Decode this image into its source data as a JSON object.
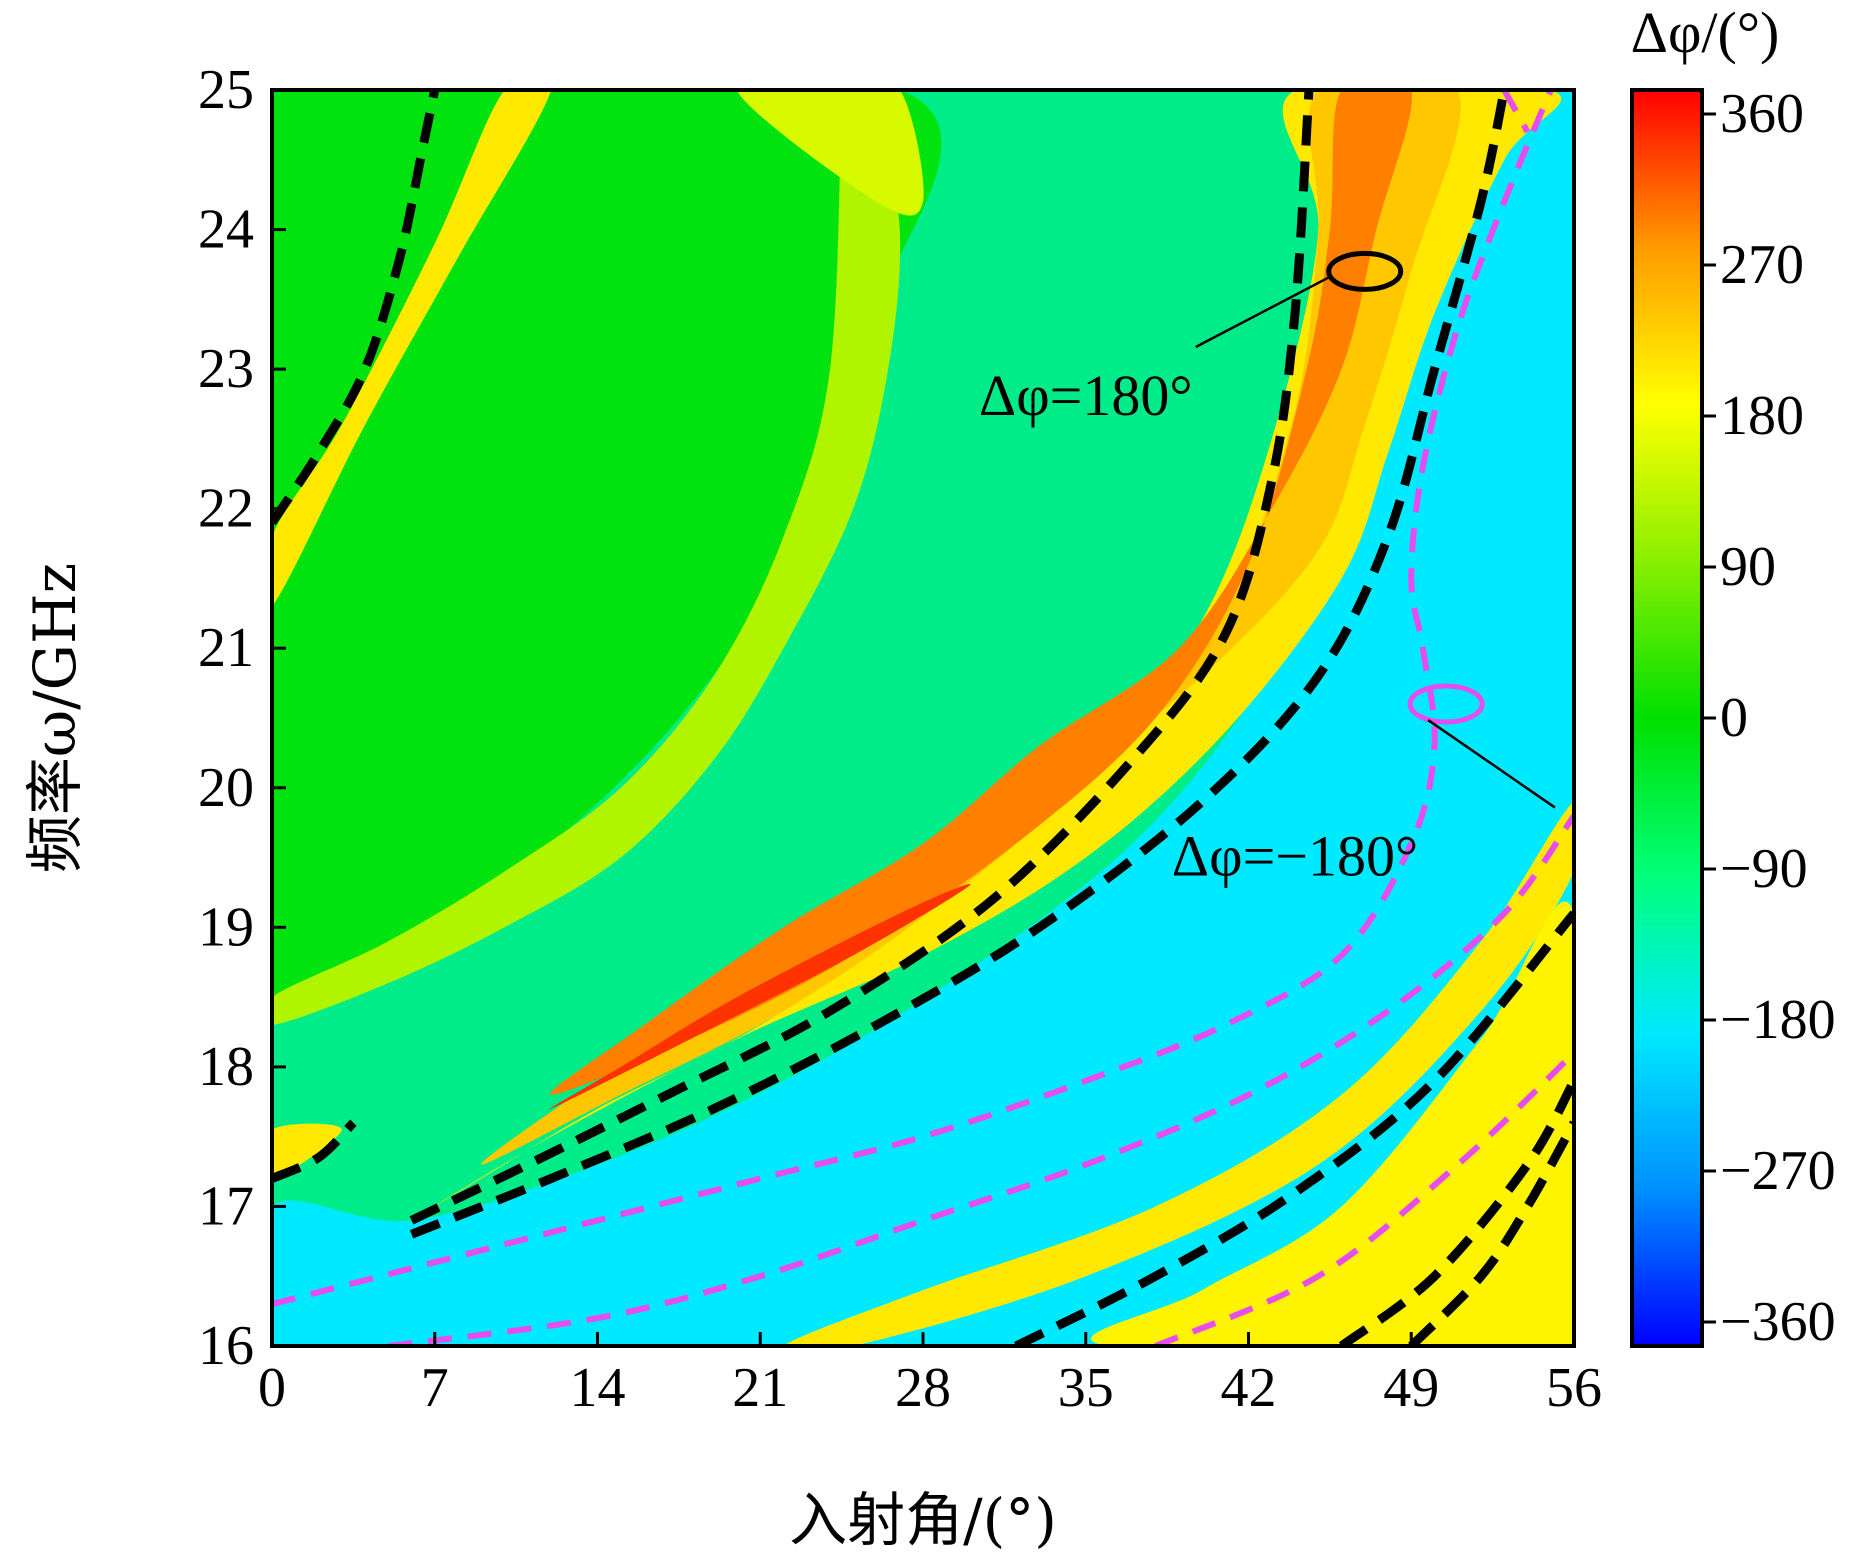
{
  "chart_data": {
    "type": "heatmap",
    "title": "",
    "xlabel": "入射角/(°)",
    "ylabel": "频率ω/GHz",
    "xlim": [
      0,
      56
    ],
    "ylim": [
      16,
      25
    ],
    "x_ticks": [
      "0",
      "7",
      "14",
      "21",
      "28",
      "35",
      "42",
      "49",
      "56"
    ],
    "y_ticks": [
      "16",
      "17",
      "18",
      "19",
      "20",
      "21",
      "22",
      "23",
      "24",
      "25"
    ],
    "colorbar": {
      "label": "Δφ/(°)",
      "range": [
        -360,
        360
      ],
      "ticks": [
        "360",
        "270",
        "180",
        "90",
        "0",
        "−90",
        "−180",
        "−270",
        "−360"
      ],
      "colors": [
        "#0000ff",
        "#0090ff",
        "#00eaff",
        "#00ff7a",
        "#00e000",
        "#8aef00",
        "#ffff00",
        "#ff9a00",
        "#ff0000"
      ]
    },
    "regions": [
      {
        "dphi": 200,
        "boundary": [
          [
            0,
            17.2
          ],
          [
            3,
            17.55
          ],
          [
            0,
            17.55
          ]
        ]
      },
      {
        "dphi": 200,
        "boundary": [
          [
            0,
            21.8
          ],
          [
            3,
            22.6
          ],
          [
            7,
            23.9
          ],
          [
            10,
            25
          ],
          [
            12,
            25
          ],
          [
            8,
            23.8
          ],
          [
            4,
            22.6
          ],
          [
            0,
            21.3
          ]
        ]
      },
      {
        "dphi": 150,
        "boundary": [
          [
            20,
            25
          ],
          [
            24.5,
            25
          ],
          [
            27,
            25
          ],
          [
            28,
            24.2
          ],
          [
            26,
            24.2
          ]
        ]
      },
      {
        "dphi": 200,
        "boundary": [
          [
            44,
            25
          ],
          [
            55,
            25
          ],
          [
            53,
            24.5
          ],
          [
            50,
            23.4
          ],
          [
            48,
            22.4
          ],
          [
            46,
            21.5
          ],
          [
            41,
            20.4
          ],
          [
            35,
            19.5
          ],
          [
            28,
            18.8
          ],
          [
            20,
            18.2
          ],
          [
            12,
            17.5
          ],
          [
            6,
            16.9
          ],
          [
            9,
            17.2
          ],
          [
            14,
            17.7
          ],
          [
            21,
            18.3
          ],
          [
            28,
            19.1
          ],
          [
            35,
            20.1
          ],
          [
            40,
            21.2
          ],
          [
            43,
            22.5
          ],
          [
            45,
            24.0
          ]
        ]
      },
      {
        "dphi": 230,
        "boundary": [
          [
            45,
            25
          ],
          [
            51,
            25
          ],
          [
            49,
            23.7
          ],
          [
            47,
            22.6
          ],
          [
            45,
            21.7
          ],
          [
            40,
            20.8
          ],
          [
            34,
            20.0
          ],
          [
            28,
            19.3
          ],
          [
            21,
            18.6
          ],
          [
            14,
            17.9
          ],
          [
            9,
            17.3
          ],
          [
            15,
            17.8
          ],
          [
            22,
            18.4
          ],
          [
            29,
            19.2
          ],
          [
            36,
            20.2
          ],
          [
            41,
            21.3
          ],
          [
            44,
            22.7
          ],
          [
            45,
            24
          ]
        ]
      },
      {
        "dphi": 285,
        "boundary": [
          [
            46,
            25
          ],
          [
            49,
            25
          ],
          [
            47.5,
            24
          ],
          [
            46,
            23
          ],
          [
            43,
            22
          ],
          [
            39,
            21
          ],
          [
            33,
            20.3
          ],
          [
            28,
            19.6
          ],
          [
            22,
            19.0
          ],
          [
            16,
            18.3
          ],
          [
            12,
            17.8
          ],
          [
            18,
            18.2
          ],
          [
            25,
            18.8
          ],
          [
            32,
            19.6
          ],
          [
            38,
            20.5
          ],
          [
            42,
            21.6
          ],
          [
            44.5,
            23
          ],
          [
            45.5,
            24
          ]
        ]
      },
      {
        "dphi": 330,
        "boundary": [
          [
            12,
            17.7
          ],
          [
            18,
            18.2
          ],
          [
            25,
            18.8
          ],
          [
            30,
            19.3
          ],
          [
            27,
            19.1
          ],
          [
            20,
            18.5
          ],
          [
            15,
            18.0
          ]
        ]
      },
      {
        "dphi": 200,
        "boundary": [
          [
            25,
            16
          ],
          [
            35,
            16.5
          ],
          [
            45,
            17.3
          ],
          [
            52,
            18.4
          ],
          [
            56,
            19.4
          ],
          [
            56,
            19.9
          ],
          [
            52,
            18.9
          ],
          [
            46,
            17.8
          ],
          [
            38,
            17.0
          ],
          [
            28,
            16.4
          ],
          [
            22,
            16
          ]
        ]
      },
      {
        "dphi": 210,
        "boundary": [
          [
            30,
            16
          ],
          [
            56,
            16
          ],
          [
            56,
            18.2
          ],
          [
            53,
            17.4
          ],
          [
            48,
            16.6
          ],
          [
            40,
            16.2
          ],
          [
            35,
            16
          ]
        ]
      },
      {
        "dphi": 190,
        "boundary": [
          [
            36,
            16
          ],
          [
            56,
            16
          ],
          [
            56,
            19.1
          ],
          [
            52,
            18.2
          ],
          [
            46,
            17.0
          ],
          [
            40,
            16.4
          ]
        ]
      }
    ],
    "annotations": [
      {
        "text": "Δφ=180°",
        "point": [
          47,
          23.7
        ],
        "label_at": [
          35,
          22.8
        ]
      },
      {
        "text": "Δφ=−180°",
        "point": [
          50.5,
          20.6
        ],
        "label_at": [
          44,
          19.5
        ]
      }
    ],
    "contours": [
      {
        "level": 180,
        "style": "black-dashed",
        "points": [
          [
            6,
            16.9
          ],
          [
            11,
            17.3
          ],
          [
            17,
            17.8
          ],
          [
            24,
            18.4
          ],
          [
            31,
            19.2
          ],
          [
            37,
            20.2
          ],
          [
            41,
            21.1
          ],
          [
            43,
            22.2
          ],
          [
            44,
            23.4
          ],
          [
            44.6,
            25
          ]
        ]
      },
      {
        "level": 180,
        "style": "black-dashed",
        "points": [
          [
            6,
            16.8
          ],
          [
            12,
            17.2
          ],
          [
            19,
            17.7
          ],
          [
            26,
            18.3
          ],
          [
            33,
            19.0
          ],
          [
            40,
            19.9
          ],
          [
            45,
            20.8
          ],
          [
            48,
            21.8
          ],
          [
            50,
            23
          ],
          [
            52,
            24.2
          ],
          [
            53,
            25
          ]
        ]
      },
      {
        "level": 180,
        "style": "black-dashed",
        "points": [
          [
            0,
            21.9
          ],
          [
            2,
            22.4
          ],
          [
            4,
            23.0
          ],
          [
            5.5,
            23.8
          ],
          [
            6.5,
            24.6
          ],
          [
            7,
            25
          ]
        ]
      },
      {
        "level": 180,
        "style": "black-dashed",
        "points": [
          [
            0,
            17.2
          ],
          [
            2,
            17.35
          ],
          [
            3.5,
            17.6
          ]
        ]
      },
      {
        "level": 180,
        "style": "black-dashed",
        "points": [
          [
            32,
            16
          ],
          [
            38,
            16.5
          ],
          [
            44,
            17.1
          ],
          [
            50,
            17.9
          ],
          [
            56,
            19.1
          ]
        ]
      },
      {
        "level": 180,
        "style": "black-dashed",
        "points": [
          [
            46,
            16
          ],
          [
            50,
            16.5
          ],
          [
            54,
            17.3
          ],
          [
            56,
            17.9
          ]
        ]
      },
      {
        "level": 180,
        "style": "black-dashed",
        "points": [
          [
            49,
            16
          ],
          [
            52,
            16.5
          ],
          [
            54,
            17.0
          ],
          [
            56,
            17.6
          ]
        ]
      },
      {
        "level": -180,
        "style": "magenta-dashed",
        "points": [
          [
            0,
            16.3
          ],
          [
            7,
            16.6
          ],
          [
            14,
            16.9
          ],
          [
            21,
            17.2
          ],
          [
            28,
            17.5
          ],
          [
            35,
            17.9
          ],
          [
            41,
            18.3
          ],
          [
            46,
            18.8
          ],
          [
            49,
            19.6
          ],
          [
            50,
            20.3
          ],
          [
            49.5,
            21.0
          ],
          [
            49,
            21.5
          ],
          [
            49.5,
            22.3
          ],
          [
            51,
            23.3
          ],
          [
            53,
            24.2
          ],
          [
            55,
            25
          ]
        ]
      },
      {
        "level": -180,
        "style": "magenta-dashed",
        "points": [
          [
            5,
            16
          ],
          [
            14,
            16.2
          ],
          [
            21,
            16.5
          ],
          [
            28,
            16.9
          ],
          [
            35,
            17.3
          ],
          [
            42,
            17.8
          ],
          [
            48,
            18.4
          ],
          [
            53,
            19.1
          ],
          [
            56,
            19.8
          ]
        ]
      },
      {
        "level": -180,
        "style": "magenta-dashed",
        "points": [
          [
            38,
            16
          ],
          [
            45,
            16.5
          ],
          [
            51,
            17.3
          ],
          [
            56,
            18.1
          ]
        ]
      },
      {
        "level": -180,
        "style": "magenta-dashed",
        "points": [
          [
            53,
            25
          ],
          [
            54,
            24.7
          ]
        ]
      }
    ]
  }
}
